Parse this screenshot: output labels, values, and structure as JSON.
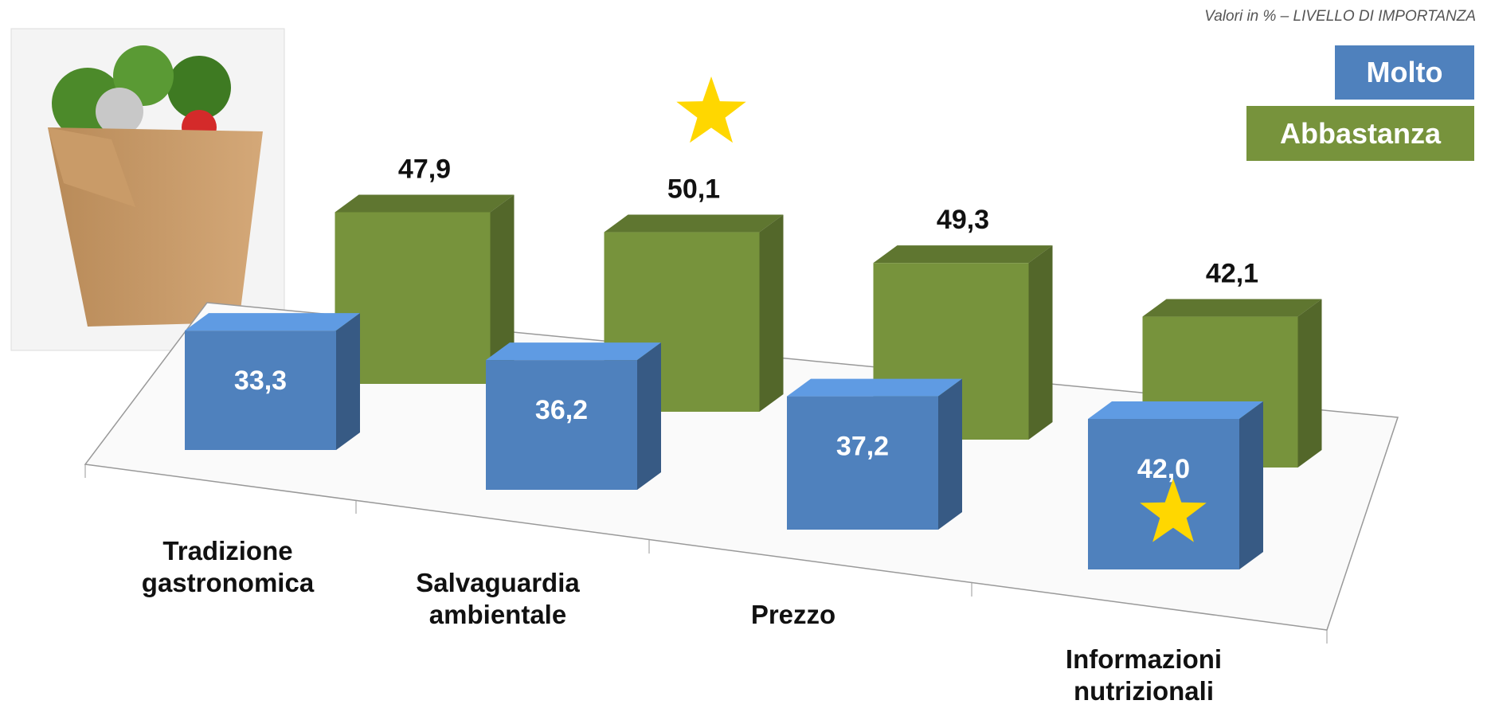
{
  "chart_data": {
    "type": "bar3d",
    "subtitle": "Valori in % – LIVELLO DI IMPORTANZA",
    "categories": [
      "Tradizione\ngastronomica",
      "Salvaguardia\nambientale",
      "Prezzo",
      "Informazioni\nnutrizionali"
    ],
    "series": [
      {
        "name": "Molto",
        "color": "#4f81bd",
        "values": [
          33.3,
          36.2,
          37.2,
          42.0
        ],
        "value_labels": [
          "33,3",
          "36,2",
          "37,2",
          "42,0"
        ]
      },
      {
        "name": "Abbastanza",
        "color": "#77933c",
        "values": [
          47.9,
          50.1,
          49.3,
          42.1
        ],
        "value_labels": [
          "47,9",
          "50,1",
          "49,3",
          "42,1"
        ]
      }
    ],
    "legend": "top-right"
  }
}
